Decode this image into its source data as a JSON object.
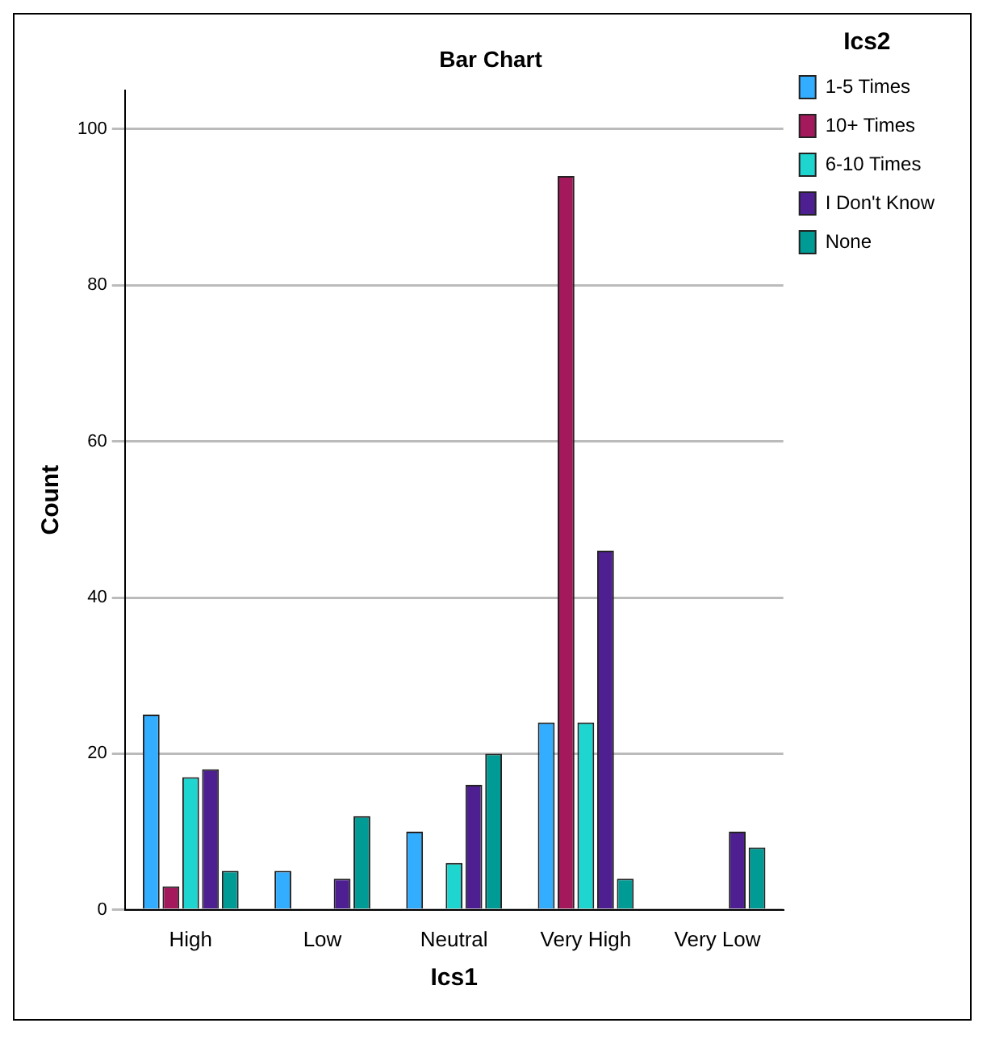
{
  "chart_data": {
    "type": "bar",
    "title": "Bar Chart",
    "xlabel": "Ics1",
    "ylabel": "Count",
    "legend_title": "Ics2",
    "categories": [
      "High",
      "Low",
      "Neutral",
      "Very High",
      "Very Low"
    ],
    "series": [
      {
        "name": "1-5 Times",
        "color": "#33adff",
        "values": [
          25,
          5,
          10,
          24,
          null
        ]
      },
      {
        "name": "10+ Times",
        "color": "#a3195b",
        "values": [
          3,
          null,
          null,
          94,
          null
        ]
      },
      {
        "name": "6-10 Times",
        "color": "#1fd5d0",
        "values": [
          17,
          null,
          6,
          24,
          null
        ]
      },
      {
        "name": "I Don't Know",
        "color": "#4d1f91",
        "values": [
          18,
          4,
          16,
          46,
          10
        ]
      },
      {
        "name": "None",
        "color": "#009b94",
        "values": [
          5,
          12,
          20,
          4,
          8
        ]
      }
    ],
    "ylim": [
      0,
      105
    ],
    "yticks": [
      0,
      20,
      40,
      60,
      80,
      100
    ],
    "grid": "y",
    "legend": "top right"
  }
}
